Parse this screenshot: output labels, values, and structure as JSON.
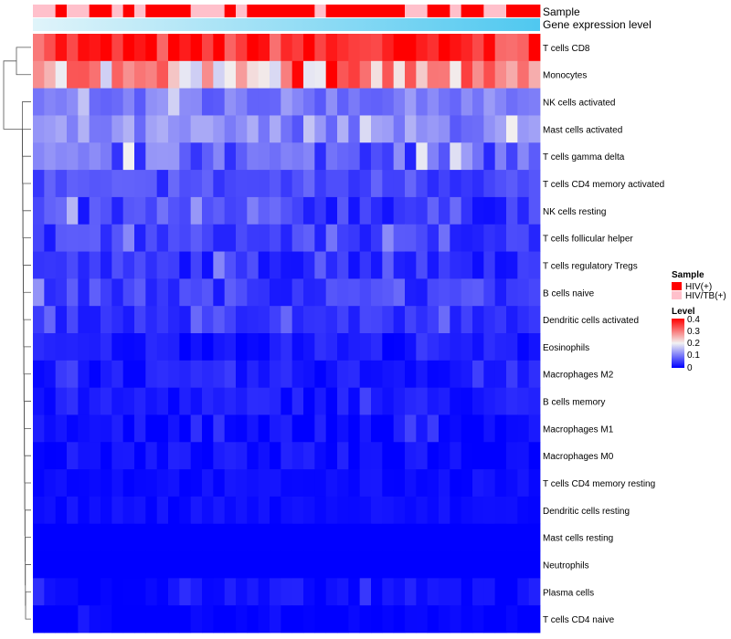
{
  "chart_data": {
    "type": "heatmap",
    "title": "",
    "annotation_tracks": [
      {
        "name": "Sample",
        "sequence": [
          "HIV/TB(+)",
          "HIV/TB(+)",
          "HIV(+)",
          "HIV/TB(+)",
          "HIV/TB(+)",
          "HIV(+)",
          "HIV(+)",
          "HIV/TB(+)",
          "HIV(+)",
          "HIV/TB(+)",
          "HIV(+)",
          "HIV(+)",
          "HIV(+)",
          "HIV(+)",
          "HIV/TB(+)",
          "HIV/TB(+)",
          "HIV/TB(+)",
          "HIV(+)",
          "HIV/TB(+)",
          "HIV(+)",
          "HIV(+)",
          "HIV(+)",
          "HIV(+)",
          "HIV(+)",
          "HIV(+)",
          "HIV/TB(+)",
          "HIV(+)",
          "HIV(+)",
          "HIV(+)",
          "HIV(+)",
          "HIV(+)",
          "HIV(+)",
          "HIV(+)",
          "HIV/TB(+)",
          "HIV/TB(+)",
          "HIV(+)",
          "HIV(+)",
          "HIV/TB(+)",
          "HIV(+)",
          "HIV(+)",
          "HIV/TB(+)",
          "HIV/TB(+)",
          "HIV(+)",
          "HIV(+)",
          "HIV(+)"
        ]
      },
      {
        "name": "Gene expression level",
        "gradient": "low to high"
      }
    ],
    "rows": [
      "T cells CD8",
      "Monocytes",
      "NK cells activated",
      "Mast cells activated",
      "T cells gamma delta",
      "T cells CD4 memory activated",
      "NK cells resting",
      "T cells follicular helper",
      "T cells regulatory  Tregs",
      "B cells naive",
      "Dendritic cells activated",
      "Eosinophils",
      "Macrophages M2",
      "B cells memory",
      "Macrophages M1",
      "Macrophages M0",
      "T cells CD4 memory resting",
      "Dendritic cells resting",
      "Mast cells resting",
      "Neutrophils",
      "Plasma cells",
      "T cells CD4 naive"
    ],
    "row_means": [
      0.36,
      0.26,
      0.1,
      0.11,
      0.08,
      0.06,
      0.05,
      0.05,
      0.04,
      0.05,
      0.04,
      0.02,
      0.02,
      0.02,
      0.01,
      0.01,
      0.01,
      0.01,
      0.0,
      0.0,
      0.01,
      0.0
    ],
    "row_spreads": [
      0.06,
      0.09,
      0.03,
      0.04,
      0.05,
      0.03,
      0.04,
      0.03,
      0.03,
      0.03,
      0.02,
      0.02,
      0.02,
      0.02,
      0.02,
      0.02,
      0.01,
      0.01,
      0.0,
      0.0,
      0.02,
      0.01
    ],
    "n_samples": 45,
    "color_scale": {
      "min": 0,
      "max": 0.4,
      "low": "#0000ff",
      "mid": "#f2f2f2",
      "high": "#ff0000"
    },
    "legends": {
      "sample": {
        "title": "Sample",
        "items": [
          {
            "label": "HIV(+)",
            "color": "#ff0000"
          },
          {
            "label": "HIV/TB(+)",
            "color": "#ffc0cb"
          }
        ]
      },
      "level": {
        "title": "Level",
        "ticks": [
          "0.4",
          "0.3",
          "0.2",
          "0.1",
          "0"
        ]
      }
    },
    "track_colors": {
      "HIV(+)": "#ff0000",
      "HIV/TB(+)": "#ffc0cb",
      "expr_low": "#d8f0f8",
      "expr_high": "#4fc8f0"
    }
  }
}
